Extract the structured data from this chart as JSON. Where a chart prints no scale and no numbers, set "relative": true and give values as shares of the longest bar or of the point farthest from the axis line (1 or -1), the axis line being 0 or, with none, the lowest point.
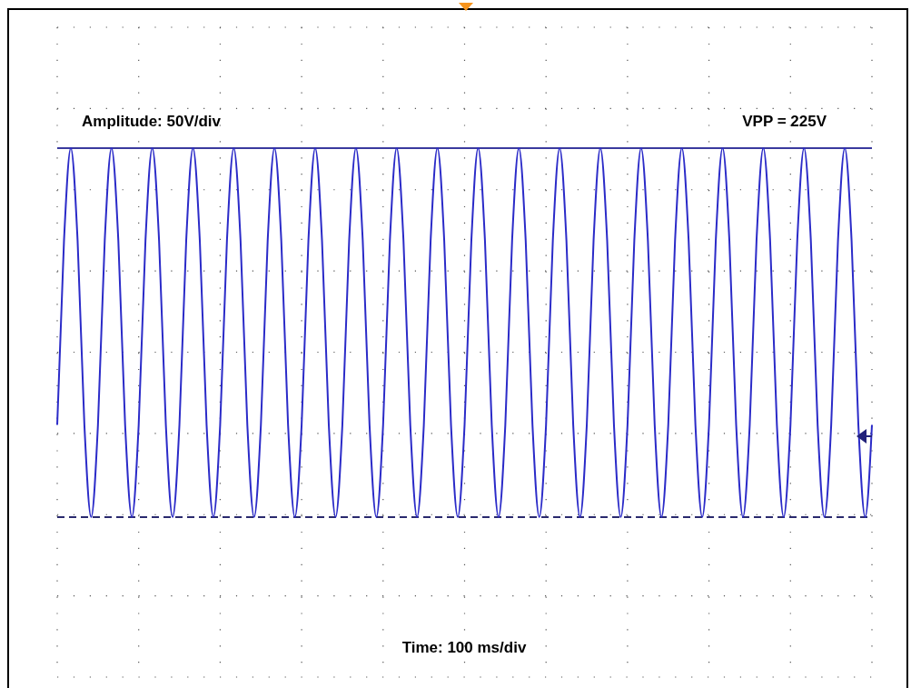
{
  "chart_data": {
    "type": "line",
    "relative": true,
    "grid": true,
    "categories": [
      null,
      null,
      null,
      null,
      null,
      null,
      null,
      null,
      null,
      null,
      null,
      null,
      null,
      null,
      null,
      null,
      null,
      null,
      null,
      null,
      null,
      null,
      null,
      null,
      null,
      null,
      null,
      null,
      null,
      null,
      null,
      null,
      null,
      null,
      null,
      null,
      null,
      null,
      null,
      null,
      null,
      null,
      null,
      null,
      null,
      null,
      null,
      null,
      null,
      null,
      null,
      null,
      null,
      null,
      null,
      null,
      null,
      null,
      null,
      null,
      null,
      null,
      null,
      null,
      null,
      null,
      null,
      null,
      null,
      null,
      null,
      null,
      null,
      null,
      null,
      null,
      null,
      null,
      null,
      null,
      null,
      null,
      null,
      null,
      null,
      null,
      null,
      null,
      null,
      null,
      null,
      null,
      null,
      null,
      null,
      null,
      null,
      null,
      null,
      null,
      null,
      null,
      null,
      null,
      null,
      null,
      null,
      null,
      null,
      null,
      null,
      null,
      null,
      null,
      null,
      null,
      null,
      null,
      null,
      null,
      null
    ],
    "series": [
      {
        "color": "#2b2bc8",
        "values": [
          0.25,
          0.75,
          1,
          0.75,
          0.25,
          0,
          0.25,
          0.75,
          1,
          0.75,
          0.25,
          0,
          0.25,
          0.75,
          1,
          0.75,
          0.25,
          0,
          0.25,
          0.75,
          1,
          0.75,
          0.25,
          0,
          0.25,
          0.75,
          1,
          0.75,
          0.25,
          0,
          0.25,
          0.75,
          1,
          0.75,
          0.25,
          0,
          0.25,
          0.75,
          1,
          0.75,
          0.25,
          0,
          0.25,
          0.75,
          1,
          0.75,
          0.25,
          0,
          0.25,
          0.75,
          1,
          0.75,
          0.25,
          0,
          0.25,
          0.75,
          1,
          0.75,
          0.25,
          0,
          0.25,
          0.75,
          1,
          0.75,
          0.25,
          0,
          0.25,
          0.75,
          1,
          0.75,
          0.25,
          0,
          0.25,
          0.75,
          1,
          0.75,
          0.25,
          0,
          0.25,
          0.75,
          1,
          0.75,
          0.25,
          0,
          0.25,
          0.75,
          1,
          0.75,
          0.25,
          0,
          0.25,
          0.75,
          1,
          0.75,
          0.25,
          0,
          0.25,
          0.75,
          1,
          0.75,
          0.25,
          0,
          0.25,
          0.75,
          1,
          0.75,
          0.25,
          0,
          0.25,
          0.75,
          1,
          0.75,
          0.25,
          0,
          0.25,
          0.75,
          1,
          0.75,
          0.25,
          0,
          0.25
        ]
      }
    ],
    "ref_lines": [
      {
        "axis": "y",
        "value": 1,
        "color": "#3a3a9e",
        "line_style": "solid"
      },
      {
        "axis": "y",
        "value": 0,
        "color": "#2a2a6e",
        "line_style": "dashed"
      }
    ],
    "annotations": [
      "Amplitude: 50V/div",
      "VPP = 225V",
      "Time: 100 ms/div"
    ]
  }
}
